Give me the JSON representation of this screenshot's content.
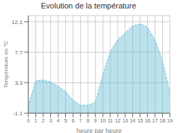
{
  "chart_data": {
    "type": "area",
    "title": "Evolution de la température",
    "xlabel": "heure par heure",
    "ylabel": "Température en °C",
    "x": [
      0,
      1,
      2,
      3,
      4,
      5,
      6,
      7,
      8,
      9,
      10,
      11,
      12,
      13,
      14,
      15,
      16,
      17,
      18,
      19
    ],
    "values": [
      0.0,
      3.6,
      3.7,
      3.4,
      2.8,
      2.0,
      0.8,
      0.05,
      0.05,
      0.5,
      4.5,
      7.8,
      9.5,
      10.5,
      11.5,
      11.8,
      11.3,
      9.5,
      6.5,
      1.8
    ],
    "xlim": [
      0,
      19
    ],
    "xticks": [
      0,
      1,
      2,
      3,
      4,
      5,
      6,
      7,
      8,
      9,
      10,
      11,
      12,
      13,
      14,
      15,
      16,
      17,
      18,
      19
    ],
    "ylim": [
      -1.1,
      13.0
    ],
    "yticks": [
      -1.1,
      3.3,
      7.7,
      12.1
    ],
    "grid": true,
    "color": "#6bbfd8",
    "line_style": "dashed"
  }
}
